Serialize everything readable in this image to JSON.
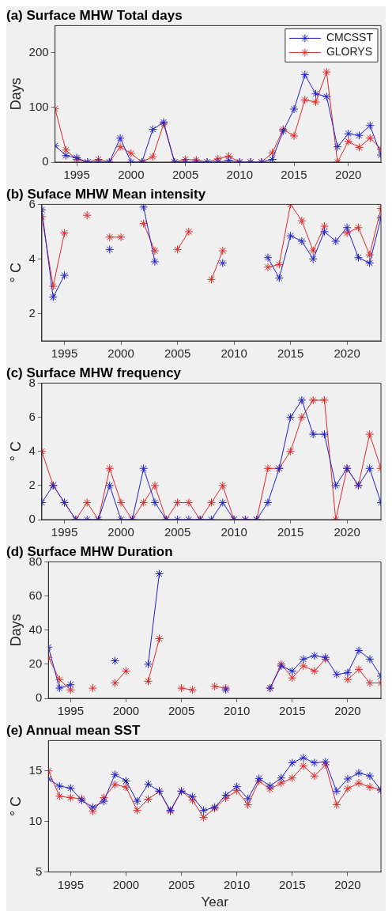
{
  "chart_data": [
    {
      "type": "line",
      "title": "(a) Surface MHW Total days",
      "ylabel": "Days",
      "x": [
        1993,
        1994,
        1995,
        1996,
        1997,
        1998,
        1999,
        2000,
        2001,
        2002,
        2003,
        2004,
        2005,
        2006,
        2007,
        2008,
        2009,
        2010,
        2011,
        2012,
        2013,
        2014,
        2015,
        2016,
        2017,
        2018,
        2019,
        2020,
        2021,
        2022,
        2023
      ],
      "xlim": [
        1993,
        2023
      ],
      "xticks": [
        1995,
        2000,
        2005,
        2010,
        2015,
        2020
      ],
      "ylim": [
        0,
        250
      ],
      "yticks": [
        0,
        100,
        200
      ],
      "marker": "cross",
      "grid": false,
      "legend": "top right",
      "series": [
        {
          "name": "CMCSST",
          "color": "#2020c8",
          "values": [
            30,
            12,
            8,
            0,
            0,
            0,
            44,
            0,
            0,
            60,
            73,
            0,
            0,
            0,
            0,
            0,
            3,
            0,
            0,
            0,
            5,
            57,
            97,
            160,
            125,
            120,
            28,
            52,
            49,
            67,
            13
          ]
        },
        {
          "name": "GLORYS",
          "color": "#e02828",
          "values": [
            98,
            22,
            5,
            0,
            5,
            0,
            28,
            16,
            0,
            10,
            70,
            0,
            5,
            4,
            0,
            6,
            11,
            0,
            0,
            0,
            17,
            60,
            48,
            114,
            110,
            165,
            0,
            38,
            27,
            44,
            24
          ]
        }
      ]
    },
    {
      "type": "line",
      "title": "(b) Suface MHW Mean intensity",
      "ylabel": "° C",
      "x": [
        1993,
        1994,
        1995,
        1996,
        1997,
        1998,
        1999,
        2000,
        2001,
        2002,
        2003,
        2004,
        2005,
        2006,
        2007,
        2008,
        2009,
        2010,
        2011,
        2012,
        2013,
        2014,
        2015,
        2016,
        2017,
        2018,
        2019,
        2020,
        2021,
        2022,
        2023
      ],
      "xlim": [
        1993,
        2023
      ],
      "xticks": [
        1995,
        2000,
        2005,
        2010,
        2015,
        2020
      ],
      "ylim": [
        1,
        6
      ],
      "yticks": [
        2,
        4,
        6
      ],
      "marker": "cross",
      "grid": false,
      "series": [
        {
          "color": "#2020c8",
          "values": [
            5.8,
            2.6,
            3.4,
            null,
            null,
            null,
            4.35,
            null,
            null,
            5.9,
            3.9,
            null,
            null,
            null,
            null,
            null,
            3.85,
            null,
            null,
            null,
            4.05,
            3.3,
            4.85,
            4.65,
            4.0,
            5.0,
            4.65,
            5.15,
            4.05,
            3.85,
            5.5
          ]
        },
        {
          "color": "#e02828",
          "values": [
            5.55,
            3.0,
            4.95,
            null,
            5.6,
            null,
            4.8,
            4.8,
            null,
            5.3,
            4.3,
            null,
            4.35,
            5.0,
            null,
            3.25,
            4.3,
            null,
            null,
            null,
            3.7,
            3.8,
            6.0,
            5.4,
            4.3,
            5.2,
            null,
            4.95,
            5.15,
            4.15,
            5.85
          ]
        }
      ]
    },
    {
      "type": "line",
      "title": "(c) Surface MHW frequency",
      "ylabel": "° C",
      "x": [
        1993,
        1994,
        1995,
        1996,
        1997,
        1998,
        1999,
        2000,
        2001,
        2002,
        2003,
        2004,
        2005,
        2006,
        2007,
        2008,
        2009,
        2010,
        2011,
        2012,
        2013,
        2014,
        2015,
        2016,
        2017,
        2018,
        2019,
        2020,
        2021,
        2022,
        2023
      ],
      "xlim": [
        1993,
        2023
      ],
      "xticks": [
        1995,
        2000,
        2005,
        2010,
        2015,
        2020
      ],
      "ylim": [
        0,
        8
      ],
      "yticks": [
        0,
        2,
        4,
        6,
        8
      ],
      "marker": "cross",
      "grid": false,
      "series": [
        {
          "color": "#2020c8",
          "values": [
            1,
            2,
            1,
            0,
            0,
            0,
            2,
            0,
            0,
            3,
            1,
            0,
            0,
            0,
            0,
            0,
            1,
            0,
            0,
            0,
            1,
            3,
            6,
            7,
            5,
            5,
            2,
            3,
            2,
            3,
            1
          ]
        },
        {
          "color": "#e02828",
          "values": [
            4,
            2,
            1,
            0,
            1,
            0,
            3,
            1,
            0,
            1,
            2,
            0,
            1,
            1,
            0,
            1,
            2,
            0,
            0,
            0,
            3,
            3,
            4,
            6,
            7,
            7,
            0,
            3,
            2,
            5,
            3
          ]
        }
      ]
    },
    {
      "type": "line",
      "title": "(d) Surface MHW Duration",
      "ylabel": "Days",
      "x": [
        1993,
        1994,
        1995,
        1996,
        1997,
        1998,
        1999,
        2000,
        2001,
        2002,
        2003,
        2004,
        2005,
        2006,
        2007,
        2008,
        2009,
        2010,
        2011,
        2012,
        2013,
        2014,
        2015,
        2016,
        2017,
        2018,
        2019,
        2020,
        2021,
        2022,
        2023
      ],
      "xlim": [
        1993,
        2023
      ],
      "xticks": [
        1995,
        2000,
        2005,
        2010,
        2015,
        2020
      ],
      "ylim": [
        0,
        80
      ],
      "yticks": [
        0,
        20,
        40,
        60,
        80
      ],
      "marker": "cross",
      "grid": false,
      "series": [
        {
          "color": "#2020c8",
          "values": [
            30,
            6,
            8,
            null,
            null,
            null,
            22,
            null,
            null,
            20,
            73,
            null,
            null,
            null,
            null,
            null,
            5,
            null,
            null,
            null,
            6,
            19,
            16,
            23,
            25,
            24,
            14,
            15,
            28,
            23,
            13
          ]
        },
        {
          "color": "#e02828",
          "values": [
            24,
            11,
            5,
            null,
            6,
            null,
            9,
            16,
            null,
            10,
            35,
            null,
            6,
            5,
            null,
            7,
            6,
            null,
            null,
            null,
            6,
            20,
            12,
            19,
            16,
            23,
            null,
            11,
            17,
            9,
            9
          ]
        }
      ]
    },
    {
      "type": "line",
      "title": "(e) Annual mean SST",
      "ylabel": "° C",
      "xlabel": "Year",
      "x": [
        1993,
        1994,
        1995,
        1996,
        1997,
        1998,
        1999,
        2000,
        2001,
        2002,
        2003,
        2004,
        2005,
        2006,
        2007,
        2008,
        2009,
        2010,
        2011,
        2012,
        2013,
        2014,
        2015,
        2016,
        2017,
        2018,
        2019,
        2020,
        2021,
        2022,
        2023
      ],
      "xlim": [
        1993,
        2023
      ],
      "xticks": [
        1995,
        2000,
        2005,
        2010,
        2015,
        2020
      ],
      "ylim": [
        5,
        18
      ],
      "yticks": [
        5,
        10,
        15
      ],
      "marker": "cross",
      "grid": false,
      "series": [
        {
          "color": "#2020c8",
          "values": [
            14.2,
            13.5,
            13.3,
            12.1,
            11.4,
            12.0,
            14.65,
            14.0,
            12.0,
            13.7,
            13.0,
            11.1,
            13.0,
            12.45,
            11.1,
            11.4,
            12.6,
            13.45,
            12.25,
            14.25,
            13.5,
            14.3,
            15.8,
            16.3,
            15.8,
            15.9,
            13.0,
            14.2,
            14.8,
            14.5,
            13.1
          ]
        },
        {
          "color": "#e02828",
          "values": [
            15.0,
            12.5,
            12.35,
            12.25,
            11.0,
            12.35,
            13.65,
            13.4,
            11.1,
            12.2,
            13.0,
            11.0,
            13.0,
            12.1,
            10.4,
            11.3,
            12.3,
            13.05,
            11.65,
            14.0,
            13.2,
            13.8,
            14.3,
            15.5,
            14.5,
            15.6,
            11.65,
            13.25,
            13.8,
            13.4,
            13.15
          ]
        }
      ]
    }
  ]
}
